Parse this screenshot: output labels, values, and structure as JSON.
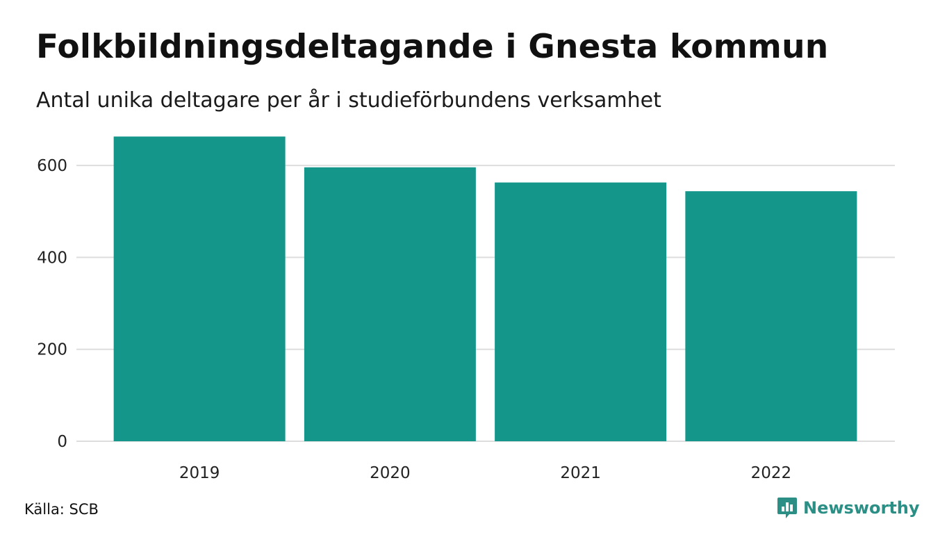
{
  "colors": {
    "bar": "#14968a",
    "grid": "#dddddd",
    "brand": "#2c8f85"
  },
  "header": {
    "title": "Folkbildningsdeltagande i Gnesta kommun",
    "subtitle": "Antal unika deltagare per år i studieförbundens verksamhet"
  },
  "footer": {
    "source": "Källa: SCB",
    "brand_name": "Newsworthy",
    "brand_icon": "newsworthy-logo-icon"
  },
  "chart_data": {
    "type": "bar",
    "title": "Folkbildningsdeltagande i Gnesta kommun",
    "subtitle": "Antal unika deltagare per år i studieförbundens verksamhet",
    "categories": [
      "2019",
      "2020",
      "2021",
      "2022"
    ],
    "values": [
      663,
      596,
      563,
      544
    ],
    "xlabel": "",
    "ylabel": "",
    "ylim": [
      0,
      700
    ],
    "yticks": [
      0,
      200,
      400,
      600
    ],
    "grid": true,
    "legend": "none"
  }
}
